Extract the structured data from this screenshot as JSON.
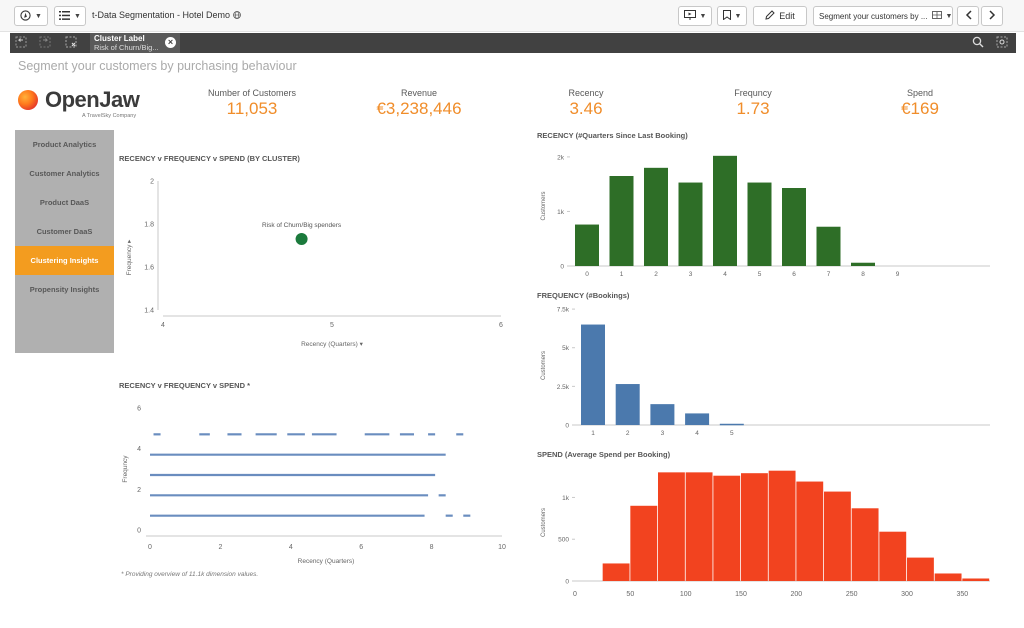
{
  "toolbar": {
    "app_title": "t-Data Segmentation - Hotel Demo",
    "edit_label": "Edit",
    "sheet_name": "Segment your customers by ...",
    "colors": {
      "background": "#f7f7f7"
    }
  },
  "selections": {
    "field": "Cluster Label",
    "value": "Risk of Churn/Big..."
  },
  "page_title": "Segment your customers by purchasing behaviour",
  "logo": {
    "text": "OpenJaw",
    "subtext": "A TravelSky Company"
  },
  "kpis": [
    {
      "label": "Number of Customers",
      "value": "11,053"
    },
    {
      "label": "Revenue",
      "value": "€3,238,446"
    },
    {
      "label": "Recency",
      "value": "3.46"
    },
    {
      "label": "Frequncy",
      "value": "1.73"
    },
    {
      "label": "Spend",
      "value": "€169"
    }
  ],
  "nav": {
    "items": [
      {
        "label": "Product Analytics",
        "active": false
      },
      {
        "label": "Customer Analytics",
        "active": false
      },
      {
        "label": "Product DaaS",
        "active": false
      },
      {
        "label": "Customer DaaS",
        "active": false
      },
      {
        "label": "Clustering Insights",
        "active": true
      },
      {
        "label": "Propensity Insights",
        "active": false
      }
    ],
    "active_color": "#f39c1f"
  },
  "footnote": "* Providing overview of 11.1k dimension values.",
  "chart_data": [
    {
      "id": "cluster-scatter",
      "type": "scatter",
      "title": "RECENCY v FREQUENCY v SPEND (BY CLUSTER)",
      "xlabel": "Recency (Quarters)",
      "ylabel": "Frequency",
      "xlim": [
        4,
        6
      ],
      "ylim": [
        1.4,
        2
      ],
      "x_ticks": [
        "4",
        "5",
        "6"
      ],
      "y_ticks": [
        "1.4",
        "1.6",
        "1.8",
        "2"
      ],
      "points": [
        {
          "label": "Risk of Churn/Big spenders",
          "x": 4.82,
          "y": 1.73
        }
      ],
      "color": "#1b7a3c"
    },
    {
      "id": "dense-scatter",
      "type": "scatter",
      "title": "RECENCY v FREQUENCY v SPEND *",
      "xlabel": "Recency (Quarters)",
      "ylabel": "Frequncy",
      "xlim": [
        0,
        10
      ],
      "ylim": [
        0,
        6
      ],
      "x_ticks": [
        "0",
        "2",
        "4",
        "6",
        "8",
        "10"
      ],
      "y_ticks": [
        "0",
        "2",
        "4",
        "6"
      ],
      "rows": [
        {
          "y": 1,
          "segments": [
            [
              0,
              7.8
            ],
            [
              8.4,
              8.6
            ],
            [
              8.9,
              9.1
            ]
          ]
        },
        {
          "y": 2,
          "segments": [
            [
              0,
              7.9
            ],
            [
              8.2,
              8.4
            ]
          ]
        },
        {
          "y": 3,
          "segments": [
            [
              0,
              8.1
            ]
          ]
        },
        {
          "y": 4,
          "segments": [
            [
              0,
              8.4
            ]
          ]
        },
        {
          "y": 5,
          "segments": [
            [
              0.1,
              0.3
            ],
            [
              1.4,
              1.7
            ],
            [
              2.2,
              2.6
            ],
            [
              3.0,
              3.6
            ],
            [
              3.9,
              4.4
            ],
            [
              4.6,
              5.3
            ],
            [
              6.1,
              6.8
            ],
            [
              7.1,
              7.5
            ],
            [
              7.9,
              8.1
            ],
            [
              8.7,
              8.9
            ]
          ]
        }
      ],
      "color": "#6a8dbf"
    },
    {
      "id": "recency-hist",
      "type": "bar",
      "title": "RECENCY (#Quarters Since Last Booking)",
      "ylabel": "Customers",
      "categories": [
        "0",
        "1",
        "2",
        "3",
        "4",
        "5",
        "6",
        "7",
        "8",
        "9"
      ],
      "values": [
        760,
        1650,
        1800,
        1530,
        2020,
        1530,
        1430,
        720,
        60,
        0
      ],
      "ylim": [
        0,
        2200
      ],
      "y_ticks": [
        {
          "v": 0,
          "label": "0"
        },
        {
          "v": 1000,
          "label": "1k"
        },
        {
          "v": 2000,
          "label": "2k"
        }
      ],
      "color": "#2e6e27"
    },
    {
      "id": "frequency-hist",
      "type": "bar",
      "title": "FREQUENCY (#Bookings)",
      "ylabel": "Customers",
      "categories": [
        "1",
        "2",
        "3",
        "4",
        "5"
      ],
      "values": [
        6500,
        2650,
        1350,
        750,
        80
      ],
      "ylim": [
        0,
        7700
      ],
      "y_ticks": [
        {
          "v": 0,
          "label": "0"
        },
        {
          "v": 2500,
          "label": "2.5k"
        },
        {
          "v": 5000,
          "label": "5k"
        },
        {
          "v": 7500,
          "label": "7.5k"
        }
      ],
      "color": "#4b79ad"
    },
    {
      "id": "spend-hist",
      "type": "bar",
      "title": "SPEND (Average Spend per Booking)",
      "ylabel": "Customers",
      "bin_edges": [
        25,
        50,
        75,
        100,
        125,
        150,
        175,
        200,
        225,
        250,
        275,
        300,
        325,
        350,
        375
      ],
      "values": [
        210,
        900,
        1300,
        1300,
        1260,
        1290,
        1320,
        1190,
        1070,
        870,
        590,
        280,
        90,
        30
      ],
      "xlim": [
        0,
        375
      ],
      "ylim": [
        0,
        1400
      ],
      "x_ticks": [
        "0",
        "50",
        "100",
        "150",
        "200",
        "250",
        "300",
        "350"
      ],
      "y_ticks": [
        {
          "v": 0,
          "label": "0"
        },
        {
          "v": 500,
          "label": "500"
        },
        {
          "v": 1000,
          "label": "1k"
        }
      ],
      "color": "#f2431f"
    }
  ]
}
